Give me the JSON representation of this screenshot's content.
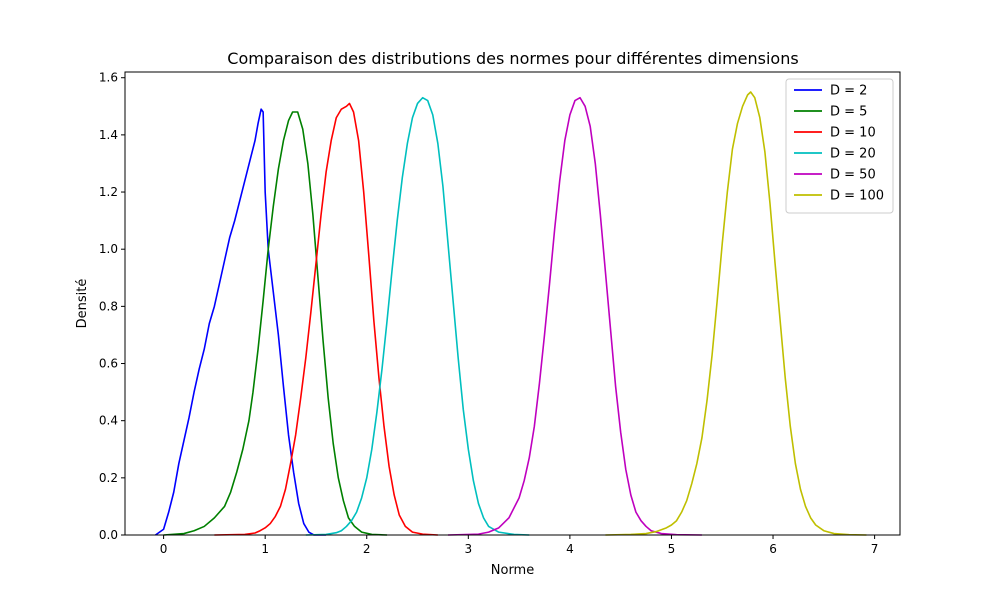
{
  "chart_data": {
    "type": "line",
    "title": "Comparaison des distributions des normes pour différentes dimensions",
    "xlabel": "Norme",
    "ylabel": "Densité",
    "xlim": [
      -0.38,
      7.25
    ],
    "ylim": [
      0,
      1.62
    ],
    "xticks": [
      0,
      1,
      2,
      3,
      4,
      5,
      6,
      7
    ],
    "yticks": [
      0.0,
      0.2,
      0.4,
      0.6,
      0.8,
      1.0,
      1.2,
      1.4,
      1.6
    ],
    "xtick_labels": [
      "0",
      "1",
      "2",
      "3",
      "4",
      "5",
      "6",
      "7"
    ],
    "ytick_labels": [
      "0.0",
      "0.2",
      "0.4",
      "0.6",
      "0.8",
      "1.0",
      "1.2",
      "1.4",
      "1.6"
    ],
    "grid": false,
    "legend_position": "top-right",
    "series": [
      {
        "name": "D = 2",
        "color": "#0000ff",
        "points": [
          [
            -0.08,
            0.0
          ],
          [
            0.0,
            0.02
          ],
          [
            0.05,
            0.08
          ],
          [
            0.1,
            0.15
          ],
          [
            0.15,
            0.25
          ],
          [
            0.2,
            0.33
          ],
          [
            0.25,
            0.41
          ],
          [
            0.3,
            0.5
          ],
          [
            0.35,
            0.58
          ],
          [
            0.4,
            0.65
          ],
          [
            0.45,
            0.74
          ],
          [
            0.5,
            0.8
          ],
          [
            0.55,
            0.88
          ],
          [
            0.6,
            0.96
          ],
          [
            0.65,
            1.04
          ],
          [
            0.7,
            1.1
          ],
          [
            0.75,
            1.17
          ],
          [
            0.8,
            1.24
          ],
          [
            0.85,
            1.31
          ],
          [
            0.9,
            1.38
          ],
          [
            0.93,
            1.44
          ],
          [
            0.96,
            1.49
          ],
          [
            0.98,
            1.48
          ],
          [
            1.0,
            1.2
          ],
          [
            1.03,
            1.0
          ],
          [
            1.08,
            0.85
          ],
          [
            1.13,
            0.7
          ],
          [
            1.18,
            0.52
          ],
          [
            1.23,
            0.35
          ],
          [
            1.28,
            0.22
          ],
          [
            1.33,
            0.11
          ],
          [
            1.38,
            0.04
          ],
          [
            1.43,
            0.01
          ],
          [
            1.48,
            0.0
          ],
          [
            1.6,
            0.0
          ]
        ]
      },
      {
        "name": "D = 5",
        "color": "#008000",
        "points": [
          [
            0.0,
            0.0
          ],
          [
            0.2,
            0.005
          ],
          [
            0.3,
            0.015
          ],
          [
            0.4,
            0.03
          ],
          [
            0.5,
            0.06
          ],
          [
            0.6,
            0.1
          ],
          [
            0.66,
            0.15
          ],
          [
            0.72,
            0.22
          ],
          [
            0.78,
            0.3
          ],
          [
            0.84,
            0.4
          ],
          [
            0.88,
            0.5
          ],
          [
            0.93,
            0.65
          ],
          [
            0.98,
            0.82
          ],
          [
            1.03,
            1.0
          ],
          [
            1.08,
            1.15
          ],
          [
            1.13,
            1.28
          ],
          [
            1.18,
            1.38
          ],
          [
            1.23,
            1.45
          ],
          [
            1.27,
            1.48
          ],
          [
            1.32,
            1.48
          ],
          [
            1.37,
            1.42
          ],
          [
            1.42,
            1.3
          ],
          [
            1.47,
            1.12
          ],
          [
            1.52,
            0.9
          ],
          [
            1.57,
            0.68
          ],
          [
            1.62,
            0.48
          ],
          [
            1.67,
            0.32
          ],
          [
            1.72,
            0.2
          ],
          [
            1.77,
            0.12
          ],
          [
            1.82,
            0.06
          ],
          [
            1.88,
            0.03
          ],
          [
            1.95,
            0.01
          ],
          [
            2.05,
            0.002
          ],
          [
            2.2,
            0.0
          ]
        ]
      },
      {
        "name": "D = 10",
        "color": "#ff0000",
        "points": [
          [
            0.5,
            0.0
          ],
          [
            0.8,
            0.002
          ],
          [
            0.9,
            0.007
          ],
          [
            0.95,
            0.015
          ],
          [
            1.0,
            0.025
          ],
          [
            1.05,
            0.04
          ],
          [
            1.1,
            0.065
          ],
          [
            1.15,
            0.1
          ],
          [
            1.2,
            0.16
          ],
          [
            1.25,
            0.25
          ],
          [
            1.3,
            0.35
          ],
          [
            1.35,
            0.48
          ],
          [
            1.4,
            0.62
          ],
          [
            1.45,
            0.78
          ],
          [
            1.5,
            0.95
          ],
          [
            1.55,
            1.12
          ],
          [
            1.6,
            1.27
          ],
          [
            1.65,
            1.38
          ],
          [
            1.7,
            1.46
          ],
          [
            1.75,
            1.49
          ],
          [
            1.8,
            1.5
          ],
          [
            1.83,
            1.51
          ],
          [
            1.87,
            1.48
          ],
          [
            1.92,
            1.38
          ],
          [
            1.97,
            1.2
          ],
          [
            2.02,
            0.98
          ],
          [
            2.07,
            0.75
          ],
          [
            2.12,
            0.55
          ],
          [
            2.17,
            0.38
          ],
          [
            2.22,
            0.24
          ],
          [
            2.27,
            0.14
          ],
          [
            2.32,
            0.07
          ],
          [
            2.38,
            0.03
          ],
          [
            2.45,
            0.01
          ],
          [
            2.55,
            0.003
          ],
          [
            2.7,
            0.0
          ]
        ]
      },
      {
        "name": "D = 20",
        "color": "#00bfbf",
        "points": [
          [
            1.4,
            0.0
          ],
          [
            1.6,
            0.002
          ],
          [
            1.7,
            0.008
          ],
          [
            1.75,
            0.015
          ],
          [
            1.8,
            0.03
          ],
          [
            1.85,
            0.05
          ],
          [
            1.9,
            0.08
          ],
          [
            1.95,
            0.13
          ],
          [
            2.0,
            0.2
          ],
          [
            2.05,
            0.3
          ],
          [
            2.1,
            0.43
          ],
          [
            2.15,
            0.58
          ],
          [
            2.2,
            0.75
          ],
          [
            2.25,
            0.93
          ],
          [
            2.3,
            1.1
          ],
          [
            2.35,
            1.25
          ],
          [
            2.4,
            1.37
          ],
          [
            2.45,
            1.46
          ],
          [
            2.5,
            1.51
          ],
          [
            2.55,
            1.53
          ],
          [
            2.6,
            1.52
          ],
          [
            2.65,
            1.47
          ],
          [
            2.7,
            1.37
          ],
          [
            2.75,
            1.22
          ],
          [
            2.8,
            1.02
          ],
          [
            2.85,
            0.82
          ],
          [
            2.9,
            0.62
          ],
          [
            2.95,
            0.44
          ],
          [
            3.0,
            0.3
          ],
          [
            3.05,
            0.19
          ],
          [
            3.1,
            0.11
          ],
          [
            3.15,
            0.06
          ],
          [
            3.2,
            0.03
          ],
          [
            3.3,
            0.01
          ],
          [
            3.45,
            0.002
          ],
          [
            3.6,
            0.0
          ]
        ]
      },
      {
        "name": "D = 50",
        "color": "#bf00bf",
        "points": [
          [
            2.8,
            0.0
          ],
          [
            3.1,
            0.003
          ],
          [
            3.2,
            0.01
          ],
          [
            3.3,
            0.025
          ],
          [
            3.4,
            0.06
          ],
          [
            3.5,
            0.13
          ],
          [
            3.55,
            0.19
          ],
          [
            3.6,
            0.27
          ],
          [
            3.65,
            0.38
          ],
          [
            3.7,
            0.53
          ],
          [
            3.75,
            0.7
          ],
          [
            3.8,
            0.88
          ],
          [
            3.85,
            1.07
          ],
          [
            3.9,
            1.24
          ],
          [
            3.95,
            1.38
          ],
          [
            4.0,
            1.47
          ],
          [
            4.05,
            1.52
          ],
          [
            4.1,
            1.53
          ],
          [
            4.15,
            1.5
          ],
          [
            4.2,
            1.43
          ],
          [
            4.25,
            1.3
          ],
          [
            4.3,
            1.12
          ],
          [
            4.35,
            0.92
          ],
          [
            4.4,
            0.72
          ],
          [
            4.45,
            0.52
          ],
          [
            4.5,
            0.36
          ],
          [
            4.55,
            0.23
          ],
          [
            4.6,
            0.14
          ],
          [
            4.65,
            0.08
          ],
          [
            4.7,
            0.05
          ],
          [
            4.75,
            0.03
          ],
          [
            4.8,
            0.015
          ],
          [
            4.9,
            0.005
          ],
          [
            5.05,
            0.001
          ],
          [
            5.3,
            0.0
          ]
        ]
      },
      {
        "name": "D = 100",
        "color": "#bfbf00",
        "points": [
          [
            4.35,
            0.0
          ],
          [
            4.6,
            0.002
          ],
          [
            4.75,
            0.005
          ],
          [
            4.85,
            0.012
          ],
          [
            4.95,
            0.025
          ],
          [
            5.0,
            0.035
          ],
          [
            5.05,
            0.05
          ],
          [
            5.1,
            0.08
          ],
          [
            5.15,
            0.12
          ],
          [
            5.2,
            0.18
          ],
          [
            5.25,
            0.25
          ],
          [
            5.3,
            0.34
          ],
          [
            5.35,
            0.47
          ],
          [
            5.4,
            0.63
          ],
          [
            5.45,
            0.82
          ],
          [
            5.5,
            1.02
          ],
          [
            5.55,
            1.2
          ],
          [
            5.6,
            1.35
          ],
          [
            5.65,
            1.44
          ],
          [
            5.7,
            1.5
          ],
          [
            5.75,
            1.54
          ],
          [
            5.78,
            1.55
          ],
          [
            5.82,
            1.53
          ],
          [
            5.87,
            1.46
          ],
          [
            5.92,
            1.34
          ],
          [
            5.97,
            1.16
          ],
          [
            6.02,
            0.95
          ],
          [
            6.07,
            0.75
          ],
          [
            6.12,
            0.55
          ],
          [
            6.17,
            0.38
          ],
          [
            6.22,
            0.25
          ],
          [
            6.27,
            0.16
          ],
          [
            6.32,
            0.1
          ],
          [
            6.37,
            0.06
          ],
          [
            6.42,
            0.035
          ],
          [
            6.5,
            0.015
          ],
          [
            6.6,
            0.005
          ],
          [
            6.75,
            0.001
          ],
          [
            6.92,
            0.0
          ]
        ]
      }
    ]
  }
}
